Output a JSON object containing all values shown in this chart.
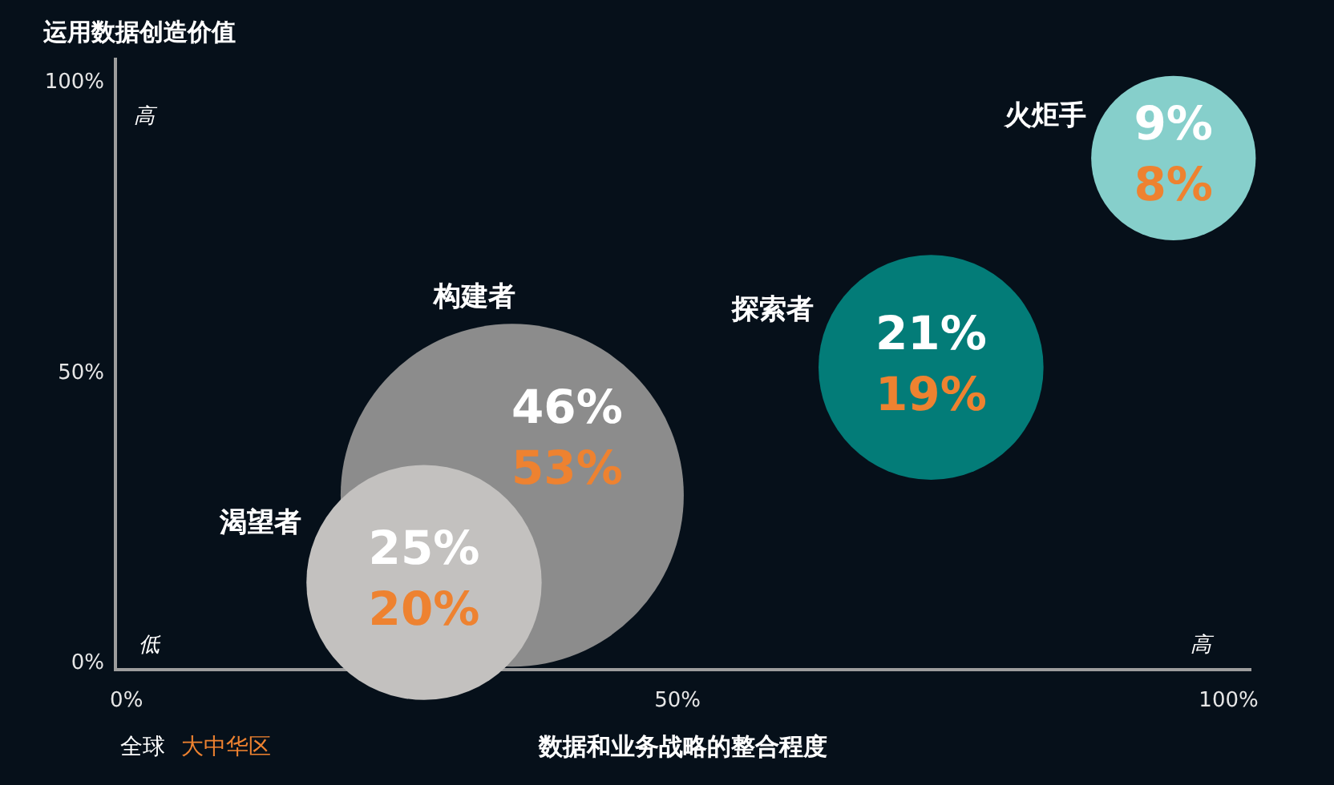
{
  "chart_data": {
    "type": "bubble",
    "xlabel": "数据和业务战略的整合程度",
    "ylabel": "运用数据创造价值",
    "x": [
      35,
      27,
      73,
      95
    ],
    "series": [
      {
        "values": [
          29,
          14,
          51,
          87
        ],
        "sizes": [
          1,
          0.47,
          0.43,
          0.23
        ],
        "colors": [
          "#8c8c8c",
          "#c3c1bf",
          "#037c78",
          "#86cfcb"
        ]
      }
    ],
    "annotations": [
      "构建者",
      "渴望者",
      "探索者",
      "火炬手",
      {
        "text": "46%",
        "x": 35,
        "y": 29
      },
      {
        "text": "53%",
        "x": 35,
        "y": 29
      },
      {
        "text": "25%",
        "x": 27,
        "y": 14
      },
      {
        "text": "20%",
        "x": 27,
        "y": 14
      },
      {
        "text": "21%",
        "x": 73,
        "y": 51
      },
      {
        "text": "19%",
        "x": 73,
        "y": 51
      },
      {
        "text": "9%",
        "x": 95,
        "y": 87
      },
      {
        "text": "8%",
        "x": 95,
        "y": 87
      },
      "高",
      "低",
      "高",
      "全球",
      "大中华区"
    ],
    "xlim": [
      -1,
      102
    ],
    "ylim": [
      -1,
      104
    ],
    "xticks": [
      {
        "value": 0,
        "label": "0%"
      },
      {
        "value": 50,
        "label": "50%"
      },
      {
        "value": 100,
        "label": "100%"
      }
    ],
    "yticks": [
      {
        "value": 0,
        "label": "0%"
      },
      {
        "value": 50,
        "label": "50%"
      },
      {
        "value": 100,
        "label": "100%"
      }
    ]
  }
}
